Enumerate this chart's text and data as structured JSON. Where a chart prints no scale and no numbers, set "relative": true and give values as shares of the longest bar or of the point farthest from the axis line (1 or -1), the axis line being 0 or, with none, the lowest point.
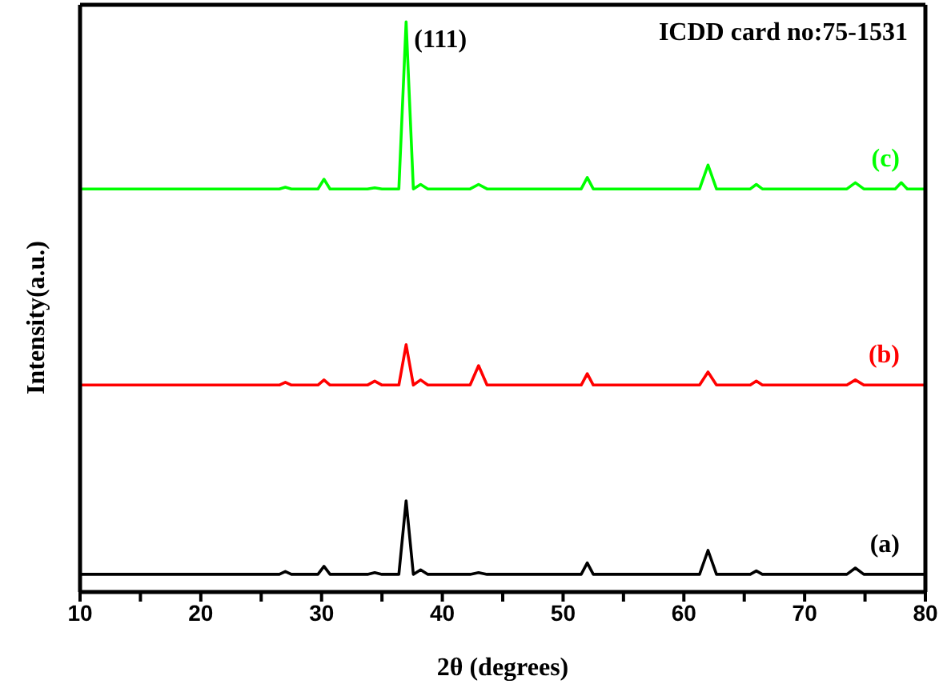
{
  "chart_data": {
    "type": "line",
    "relative": true,
    "xlabel": "2θ (degrees)",
    "ylabel": "Intensity(a.u.)",
    "x": [
      10,
      26.5,
      27,
      27.5,
      29.7,
      30.2,
      30.7,
      33.8,
      34.4,
      35,
      36.4,
      37,
      37.6,
      38.2,
      38.8,
      42.3,
      43,
      43.7,
      51.5,
      52,
      52.5,
      61.3,
      62,
      62.7,
      65.5,
      66,
      66.5,
      73.5,
      74.2,
      74.9,
      77.5,
      78,
      78.5,
      80
    ],
    "series": [
      {
        "name": "(a)",
        "color": "#000000",
        "values": [
          0.031,
          0.031,
          0.036,
          0.031,
          0.031,
          0.045,
          0.031,
          0.031,
          0.034,
          0.031,
          0.031,
          0.16,
          0.031,
          0.039,
          0.031,
          0.031,
          0.034,
          0.031,
          0.031,
          0.051,
          0.031,
          0.031,
          0.073,
          0.031,
          0.031,
          0.037,
          0.031,
          0.031,
          0.042,
          0.031,
          0.031,
          0.031,
          0.031,
          0.031
        ]
      },
      {
        "name": "(b)",
        "color": "#ff0000",
        "values": [
          0.363,
          0.363,
          0.368,
          0.363,
          0.363,
          0.372,
          0.363,
          0.363,
          0.37,
          0.363,
          0.363,
          0.434,
          0.363,
          0.372,
          0.363,
          0.363,
          0.397,
          0.363,
          0.363,
          0.383,
          0.363,
          0.363,
          0.386,
          0.363,
          0.363,
          0.37,
          0.363,
          0.363,
          0.372,
          0.363,
          0.363,
          0.363,
          0.363,
          0.363
        ]
      },
      {
        "name": "(c)",
        "color": "#00ff00",
        "values": [
          0.707,
          0.707,
          0.71,
          0.707,
          0.707,
          0.724,
          0.707,
          0.707,
          0.709,
          0.707,
          0.707,
          1,
          0.707,
          0.715,
          0.707,
          0.707,
          0.715,
          0.707,
          0.707,
          0.727,
          0.707,
          0.707,
          0.749,
          0.707,
          0.707,
          0.715,
          0.707,
          0.707,
          0.718,
          0.707,
          0.707,
          0.718,
          0.707,
          0.707
        ]
      }
    ],
    "xlim": [
      10,
      80
    ],
    "xticks": [
      10,
      {
        "value": 15,
        "label": null
      },
      20,
      {
        "value": 25,
        "label": null
      },
      30,
      {
        "value": 35,
        "label": null
      },
      40,
      {
        "value": 45,
        "label": null
      },
      50,
      {
        "value": 55,
        "label": null
      },
      60,
      {
        "value": 65,
        "label": null
      },
      70,
      {
        "value": 75,
        "label": null
      },
      80
    ],
    "annotations": [
      {
        "text": "(111)",
        "x": 37,
        "y": 1
      },
      "ICDD card no:75-1531"
    ],
    "grid": false,
    "legend": false,
    "marker": "none",
    "line_style": "solid"
  }
}
